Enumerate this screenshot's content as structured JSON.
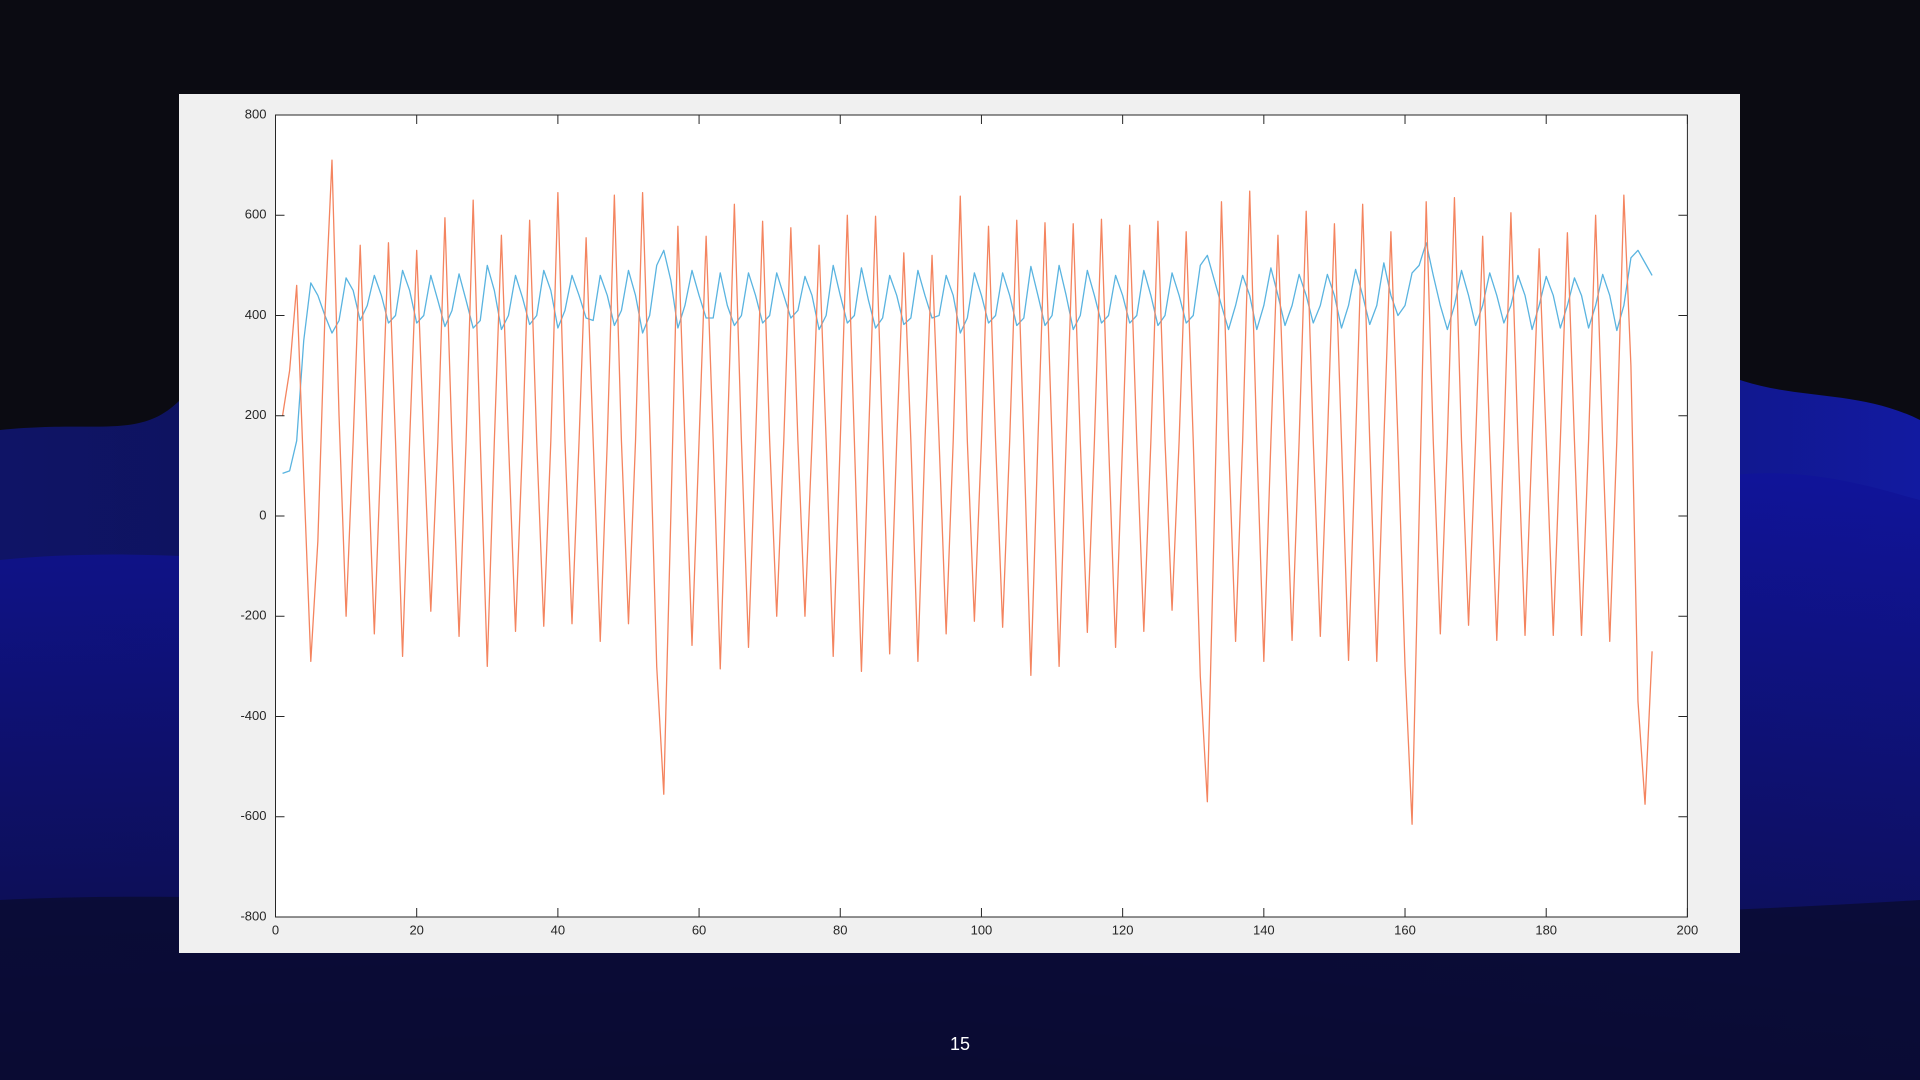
{
  "page_number": "15",
  "chart_data": {
    "type": "line",
    "x": [
      1,
      2,
      3,
      4,
      5,
      6,
      7,
      8,
      9,
      10,
      11,
      12,
      13,
      14,
      15,
      16,
      17,
      18,
      19,
      20,
      21,
      22,
      23,
      24,
      25,
      26,
      27,
      28,
      29,
      30,
      31,
      32,
      33,
      34,
      35,
      36,
      37,
      38,
      39,
      40,
      41,
      42,
      43,
      44,
      45,
      46,
      47,
      48,
      49,
      50,
      51,
      52,
      53,
      54,
      55,
      56,
      57,
      58,
      59,
      60,
      61,
      62,
      63,
      64,
      65,
      66,
      67,
      68,
      69,
      70,
      71,
      72,
      73,
      74,
      75,
      76,
      77,
      78,
      79,
      80,
      81,
      82,
      83,
      84,
      85,
      86,
      87,
      88,
      89,
      90,
      91,
      92,
      93,
      94,
      95,
      96,
      97,
      98,
      99,
      100,
      101,
      102,
      103,
      104,
      105,
      106,
      107,
      108,
      109,
      110,
      111,
      112,
      113,
      114,
      115,
      116,
      117,
      118,
      119,
      120,
      121,
      122,
      123,
      124,
      125,
      126,
      127,
      128,
      129,
      130,
      131,
      132,
      133,
      134,
      135,
      136,
      137,
      138,
      139,
      140,
      141,
      142,
      143,
      144,
      145,
      146,
      147,
      148,
      149,
      150,
      151,
      152,
      153,
      154,
      155,
      156,
      157,
      158,
      159,
      160,
      161,
      162,
      163,
      164,
      165,
      166,
      167,
      168,
      169,
      170,
      171,
      172,
      173,
      174,
      175,
      176,
      177,
      178,
      179,
      180,
      181,
      182,
      183,
      184,
      185,
      186,
      187,
      188,
      189,
      190,
      191,
      192,
      193,
      194,
      195
    ],
    "series": [
      {
        "color": "#5ab4e0",
        "values": [
          85,
          90,
          150,
          350,
          465,
          440,
          400,
          365,
          390,
          475,
          450,
          390,
          420,
          480,
          440,
          385,
          400,
          490,
          450,
          385,
          400,
          480,
          430,
          378,
          410,
          483,
          430,
          375,
          390,
          500,
          450,
          372,
          400,
          480,
          435,
          382,
          400,
          490,
          450,
          375,
          410,
          480,
          440,
          395,
          390,
          480,
          440,
          380,
          410,
          490,
          440,
          365,
          400,
          500,
          530,
          470,
          375,
          420,
          490,
          440,
          395,
          395,
          485,
          420,
          380,
          400,
          485,
          440,
          385,
          400,
          485,
          440,
          395,
          410,
          478,
          440,
          372,
          400,
          500,
          440,
          385,
          400,
          495,
          430,
          375,
          395,
          480,
          440,
          382,
          395,
          490,
          440,
          395,
          400,
          480,
          440,
          365,
          395,
          485,
          440,
          385,
          400,
          485,
          440,
          380,
          395,
          498,
          440,
          380,
          400,
          500,
          440,
          372,
          400,
          490,
          440,
          385,
          400,
          480,
          440,
          385,
          400,
          490,
          440,
          380,
          400,
          485,
          440,
          385,
          400,
          500,
          520,
          470,
          420,
          372,
          420,
          480,
          440,
          372,
          420,
          495,
          440,
          380,
          420,
          482,
          440,
          385,
          420,
          482,
          440,
          375,
          420,
          492,
          440,
          382,
          420,
          505,
          440,
          400,
          420,
          485,
          500,
          545,
          480,
          420,
          372,
          420,
          490,
          440,
          380,
          420,
          485,
          440,
          385,
          420,
          480,
          440,
          372,
          420,
          478,
          440,
          375,
          420,
          475,
          440,
          375,
          420,
          482,
          440,
          370,
          420,
          515,
          530,
          505,
          480
        ]
      },
      {
        "color": "#f4845f",
        "values": [
          200,
          290,
          460,
          80,
          -290,
          -50,
          400,
          710,
          200,
          -200,
          150,
          540,
          150,
          -235,
          150,
          545,
          150,
          -280,
          150,
          530,
          150,
          -190,
          150,
          595,
          150,
          -240,
          150,
          630,
          150,
          -300,
          150,
          560,
          150,
          -230,
          150,
          590,
          150,
          -220,
          150,
          645,
          150,
          -215,
          150,
          555,
          150,
          -250,
          150,
          640,
          150,
          -215,
          150,
          645,
          200,
          -300,
          -555,
          0,
          578,
          150,
          -258,
          150,
          558,
          150,
          -305,
          150,
          622,
          150,
          -262,
          150,
          588,
          150,
          -200,
          150,
          575,
          150,
          -200,
          150,
          540,
          150,
          -280,
          150,
          600,
          150,
          -310,
          150,
          598,
          150,
          -275,
          150,
          525,
          150,
          -290,
          150,
          520,
          150,
          -235,
          150,
          638,
          150,
          -210,
          150,
          578,
          150,
          -222,
          150,
          590,
          150,
          -318,
          150,
          585,
          150,
          -300,
          150,
          583,
          150,
          -232,
          150,
          592,
          150,
          -262,
          150,
          580,
          150,
          -230,
          150,
          588,
          150,
          -188,
          150,
          567,
          150,
          -320,
          -570,
          0,
          627,
          150,
          -250,
          150,
          648,
          150,
          -290,
          150,
          560,
          150,
          -248,
          150,
          608,
          150,
          -240,
          150,
          583,
          150,
          -288,
          150,
          622,
          150,
          -290,
          150,
          567,
          150,
          -300,
          -615,
          0,
          627,
          150,
          -235,
          150,
          635,
          150,
          -218,
          150,
          558,
          150,
          -248,
          150,
          605,
          150,
          -238,
          150,
          533,
          150,
          -238,
          150,
          565,
          150,
          -238,
          150,
          600,
          150,
          -250,
          150,
          640,
          300,
          -370,
          -575,
          -270
        ]
      }
    ],
    "xlim": [
      0,
      200
    ],
    "xticks": [
      0,
      20,
      40,
      60,
      80,
      100,
      120,
      140,
      160,
      180,
      200
    ],
    "ylim": [
      -800,
      800
    ],
    "yticks": [
      -800,
      -600,
      -400,
      -200,
      0,
      200,
      400,
      600,
      800
    ],
    "grid": false
  }
}
